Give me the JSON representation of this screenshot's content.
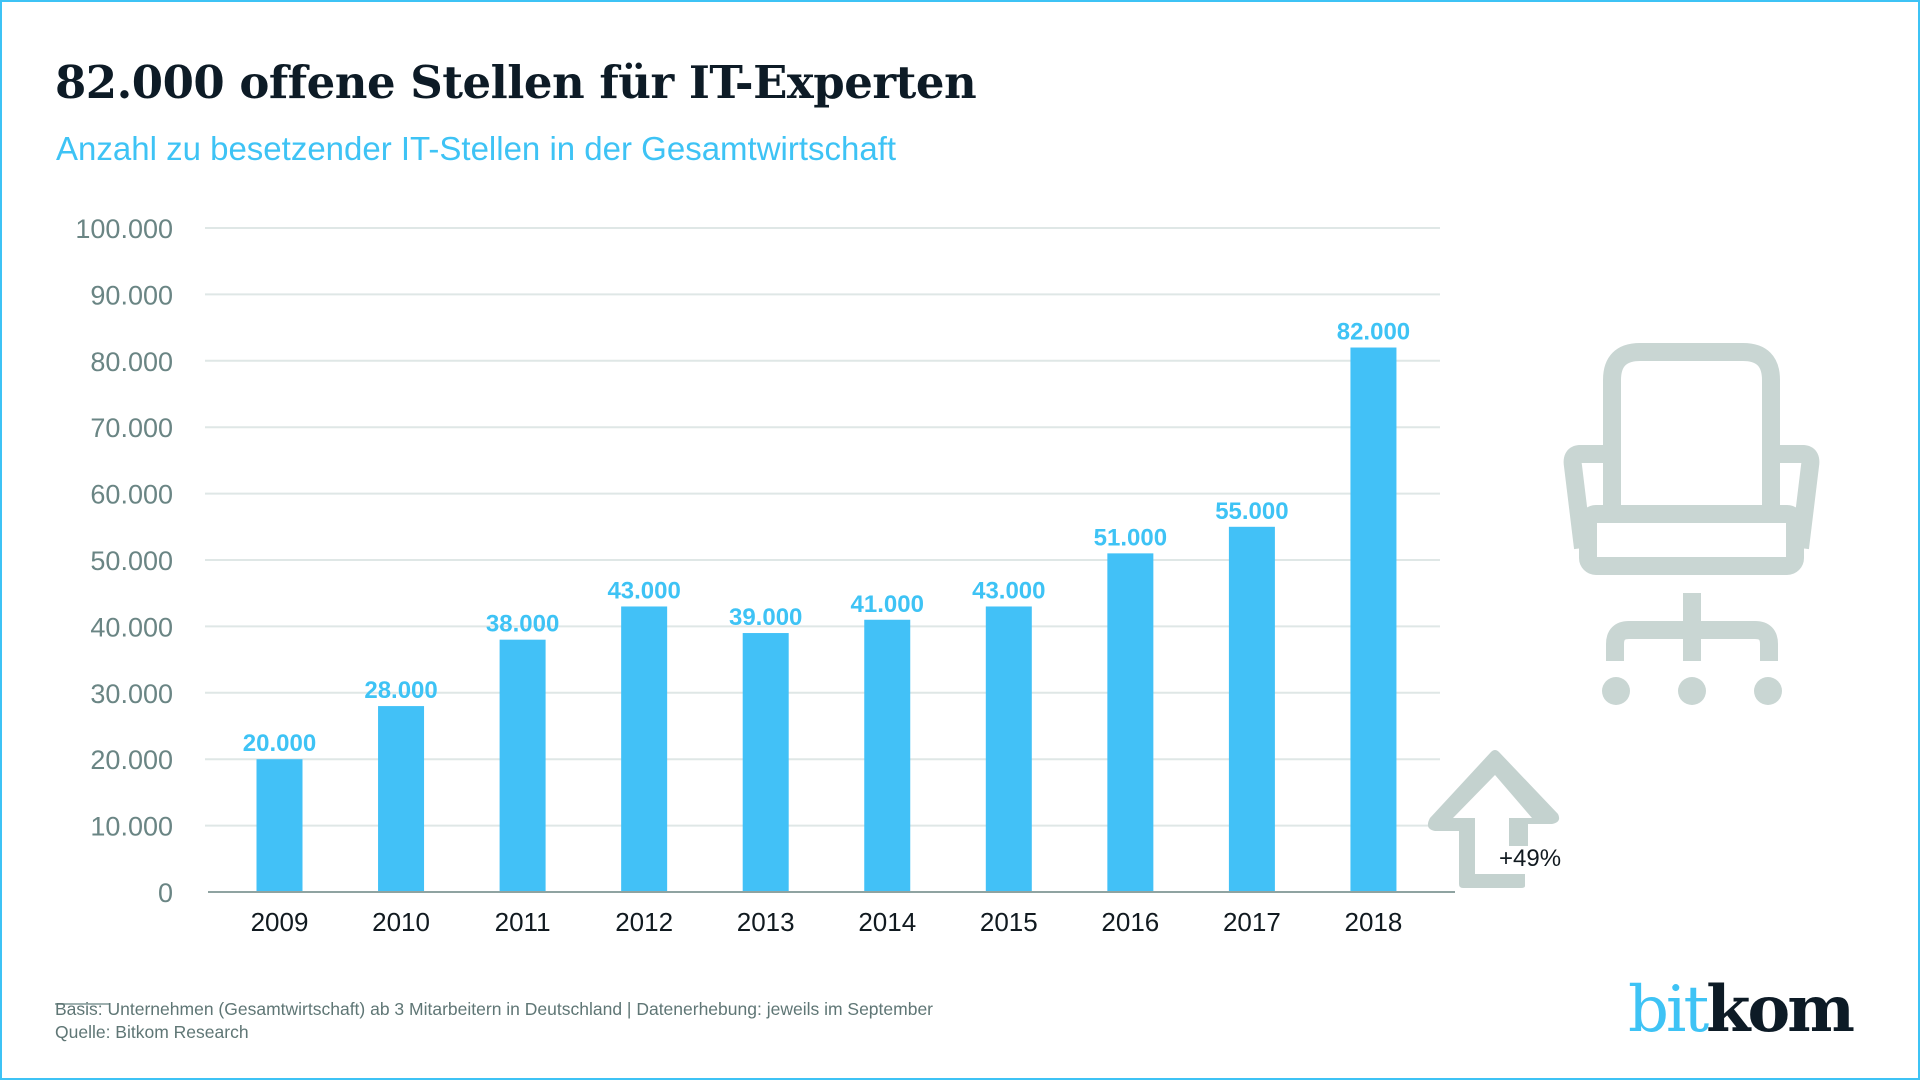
{
  "header": {
    "title": "82.000 offene Stellen für IT-Experten",
    "subtitle": "Anzahl zu besetzender IT-Stellen in der Gesamtwirtschaft"
  },
  "colors": {
    "bar": "#42c1f7",
    "accent": "#3ec3f5",
    "title": "#0d1b26",
    "axis_text": "#6a8584",
    "grid": "#dfe7e6",
    "icon": "#c9d6d3"
  },
  "chart_data": {
    "type": "bar",
    "title": "82.000 offene Stellen für IT-Experten",
    "subtitle": "Anzahl zu besetzender IT-Stellen in der Gesamtwirtschaft",
    "xlabel": "",
    "ylabel": "",
    "categories": [
      "2009",
      "2010",
      "2011",
      "2012",
      "2013",
      "2014",
      "2015",
      "2016",
      "2017",
      "2018"
    ],
    "values": [
      20000,
      28000,
      38000,
      43000,
      39000,
      41000,
      43000,
      51000,
      55000,
      82000
    ],
    "value_labels": [
      "20.000",
      "28.000",
      "38.000",
      "43.000",
      "39.000",
      "41.000",
      "43.000",
      "51.000",
      "55.000",
      "82.000"
    ],
    "ylim": [
      0,
      100000
    ],
    "yticks": [
      0,
      10000,
      20000,
      30000,
      40000,
      50000,
      60000,
      70000,
      80000,
      90000,
      100000
    ],
    "ytick_labels": [
      "0",
      "10.000",
      "20.000",
      "30.000",
      "40.000",
      "50.000",
      "60.000",
      "70.000",
      "80.000",
      "90.000",
      "100.000"
    ],
    "grid": true,
    "legend": "none",
    "annotations": [
      {
        "text": "+49%",
        "icon": "up-arrow-icon",
        "placement": "right of 2018 bar"
      }
    ]
  },
  "decor": {
    "icon": "office-chair-icon",
    "growth_icon": "up-arrow-icon"
  },
  "footer": {
    "basis": "Basis: Unternehmen (Gesamtwirtschaft) ab 3 Mitarbeitern in Deutschland | Datenerhebung: jeweils im September",
    "source": "Quelle: Bitkom Research",
    "logo_part1": "bit",
    "logo_part2": "kom"
  }
}
